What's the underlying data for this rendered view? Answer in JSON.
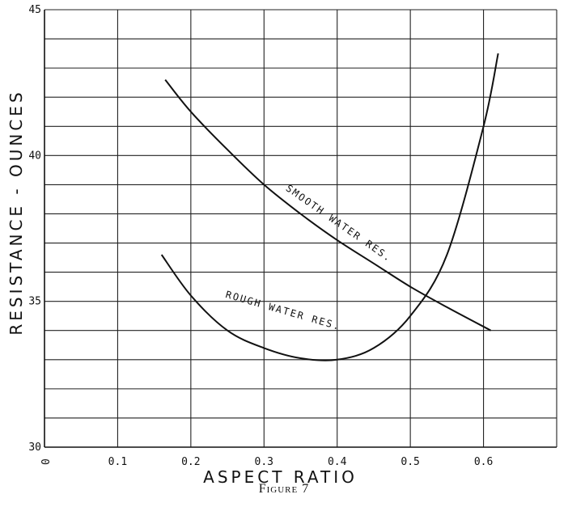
{
  "caption": "Figure 7",
  "chart_data": {
    "type": "line",
    "xlabel": "ASPECT RATIO",
    "ylabel": "RESISTANCE - OUNCES",
    "xlim": [
      0,
      0.7
    ],
    "ylim": [
      30,
      45
    ],
    "x_ticks": [
      "0",
      "0.1",
      "0.2",
      "0.3",
      "0.4",
      "0.5",
      "0.6"
    ],
    "y_ticks": [
      "30",
      "35",
      "40",
      "45"
    ],
    "grid": true,
    "series": [
      {
        "name": "SMOOTH WATER RES.",
        "color": "#111111",
        "x": [
          0.165,
          0.2,
          0.25,
          0.3,
          0.35,
          0.4,
          0.45,
          0.5,
          0.55,
          0.61
        ],
        "y": [
          42.6,
          41.5,
          40.2,
          39.0,
          38.0,
          37.1,
          36.3,
          35.5,
          34.8,
          34.0
        ]
      },
      {
        "name": "ROUGH WATER RES.",
        "color": "#111111",
        "x": [
          0.16,
          0.2,
          0.25,
          0.3,
          0.35,
          0.4,
          0.45,
          0.5,
          0.55,
          0.6,
          0.62
        ],
        "y": [
          36.6,
          35.2,
          34.0,
          33.4,
          33.05,
          33.0,
          33.4,
          34.5,
          36.6,
          41.0,
          43.5
        ]
      }
    ]
  }
}
